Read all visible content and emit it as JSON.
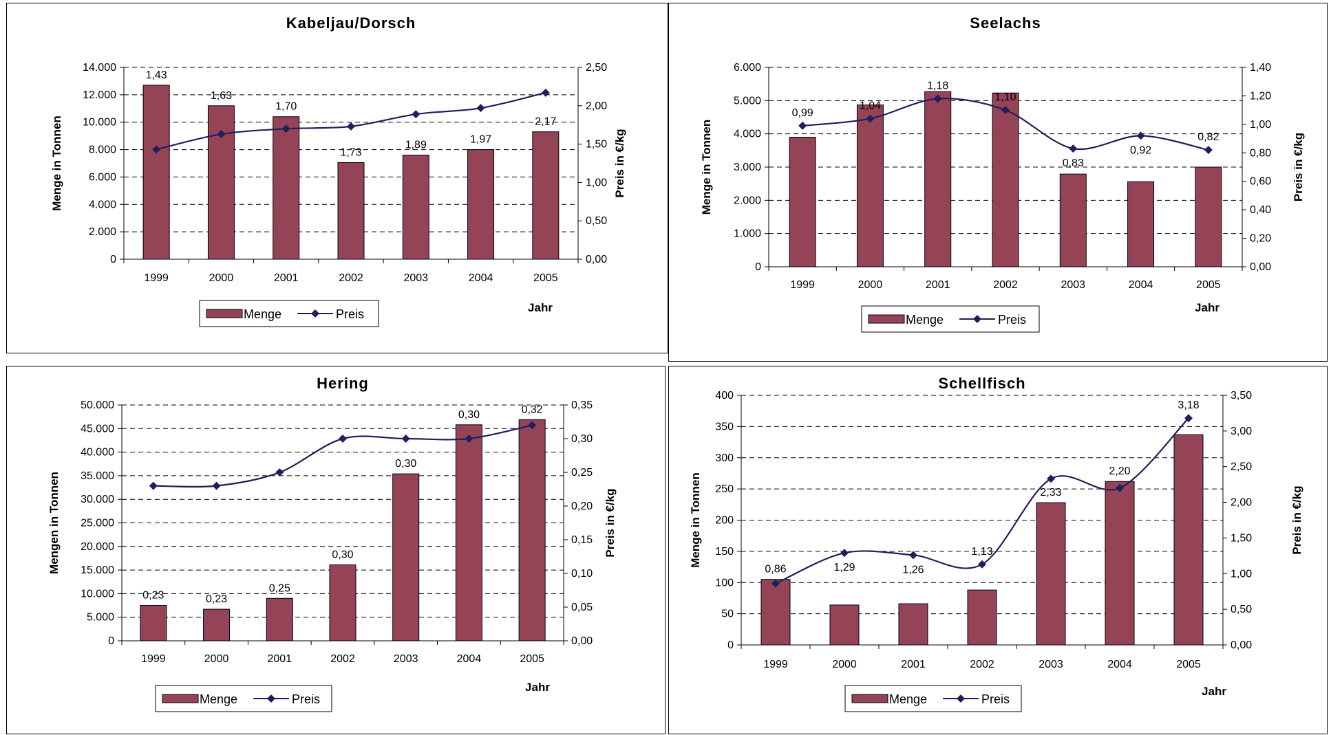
{
  "colors": {
    "bar": "#954458",
    "line": "#1f1f5c",
    "grid": "#000000"
  },
  "chart_data": [
    {
      "type": "bar",
      "title": "Kabeljau/Dorsch",
      "categories": [
        "1999",
        "2000",
        "2001",
        "2002",
        "2003",
        "2004",
        "2005"
      ],
      "series": [
        {
          "name": "Menge",
          "axis": "left",
          "values": [
            12700,
            11200,
            10400,
            7050,
            7600,
            8000,
            9300
          ]
        },
        {
          "name": "Preis",
          "type": "line",
          "axis": "right",
          "values": [
            1.43,
            1.63,
            1.7,
            1.73,
            1.89,
            1.97,
            2.17
          ]
        }
      ],
      "data_labels": [
        "1,43",
        "1,63",
        "1,70",
        "1,73",
        "1,89",
        "1,97",
        "2,17"
      ],
      "ylabel": "Menge in Tonnen",
      "y2label": "Preis in €/kg",
      "xlabel": "Jahr",
      "ylim": [
        0,
        14000
      ],
      "y2lim": [
        0,
        2.5
      ],
      "yticks": [
        "0",
        "2.000",
        "4.000",
        "6.000",
        "8.000",
        "10.000",
        "12.000",
        "14.000"
      ],
      "y2ticks": [
        "0,00",
        "0,50",
        "1,00",
        "1,50",
        "2,00",
        "2,50"
      ],
      "legend": [
        "Menge",
        "Preis"
      ],
      "legend_position": "bottom"
    },
    {
      "type": "bar",
      "title": "Seelachs",
      "categories": [
        "1999",
        "2000",
        "2001",
        "2002",
        "2003",
        "2004",
        "2005"
      ],
      "series": [
        {
          "name": "Menge",
          "axis": "left",
          "values": [
            3900,
            4870,
            5270,
            5230,
            2790,
            2560,
            3000
          ]
        },
        {
          "name": "Preis",
          "type": "line",
          "axis": "right",
          "values": [
            0.99,
            1.04,
            1.18,
            1.1,
            0.83,
            0.92,
            0.82
          ]
        }
      ],
      "data_labels": [
        "0,99",
        "1,04",
        "1,18",
        "1,10",
        "0,83",
        "0,92",
        "0,82"
      ],
      "ylabel": "Menge in Tonnen",
      "y2label": "Preis in €/kg",
      "xlabel": "Jahr",
      "ylim": [
        0,
        6000
      ],
      "y2lim": [
        0,
        1.4
      ],
      "yticks": [
        "0",
        "1.000",
        "2.000",
        "3.000",
        "4.000",
        "5.000",
        "6.000"
      ],
      "y2ticks": [
        "0,00",
        "0,20",
        "0,40",
        "0,60",
        "0,80",
        "1,00",
        "1,20",
        "1,40"
      ],
      "legend": [
        "Menge",
        "Preis"
      ],
      "legend_position": "bottom"
    },
    {
      "type": "bar",
      "title": "Hering",
      "categories": [
        "1999",
        "2000",
        "2001",
        "2002",
        "2003",
        "2004",
        "2005"
      ],
      "series": [
        {
          "name": "Menge",
          "axis": "left",
          "values": [
            7500,
            6700,
            9000,
            16100,
            35400,
            45800,
            46900
          ]
        },
        {
          "name": "Preis",
          "type": "line",
          "axis": "right",
          "values": [
            0.23,
            0.23,
            0.25,
            0.3,
            0.3,
            0.3,
            0.32
          ]
        }
      ],
      "data_labels": [
        "0,23",
        "0,23",
        "0,25",
        "0,30",
        "0,30",
        "0,30",
        "0,32"
      ],
      "ylabel": "Mengen in Tonnen",
      "y2label": "Preis in €/kg",
      "xlabel": "Jahr",
      "ylim": [
        0,
        50000
      ],
      "y2lim": [
        0,
        0.35
      ],
      "yticks": [
        "0",
        "5.000",
        "10.000",
        "15.000",
        "20.000",
        "25.000",
        "30.000",
        "35.000",
        "40.000",
        "45.000",
        "50.000"
      ],
      "y2ticks": [
        "0,00",
        "0,05",
        "0,10",
        "0,15",
        "0,20",
        "0,25",
        "0,30",
        "0,35"
      ],
      "legend": [
        "Menge",
        "Preis"
      ],
      "legend_position": "bottom"
    },
    {
      "type": "bar",
      "title": "Schellfisch",
      "categories": [
        "1999",
        "2000",
        "2001",
        "2002",
        "2003",
        "2004",
        "2005"
      ],
      "series": [
        {
          "name": "Menge",
          "axis": "left",
          "values": [
            105,
            64,
            66,
            88,
            228,
            262,
            337
          ]
        },
        {
          "name": "Preis",
          "type": "line",
          "axis": "right",
          "values": [
            0.86,
            1.29,
            1.26,
            1.13,
            2.33,
            2.2,
            3.18
          ]
        }
      ],
      "data_labels": [
        "0,86",
        "1,29",
        "1,26",
        "1,13",
        "2,33",
        "2,20",
        "3,18"
      ],
      "ylabel": "Menge in Tonnen",
      "y2label": "Preis in €/kg",
      "xlabel": "Jahr",
      "ylim": [
        0,
        400
      ],
      "y2lim": [
        0,
        3.5
      ],
      "yticks": [
        "0",
        "50",
        "100",
        "150",
        "200",
        "250",
        "300",
        "350",
        "400"
      ],
      "y2ticks": [
        "0,00",
        "0,50",
        "1,00",
        "1,50",
        "2,00",
        "2,50",
        "3,00",
        "3,50"
      ],
      "legend": [
        "Menge",
        "Preis"
      ],
      "legend_position": "bottom"
    }
  ]
}
